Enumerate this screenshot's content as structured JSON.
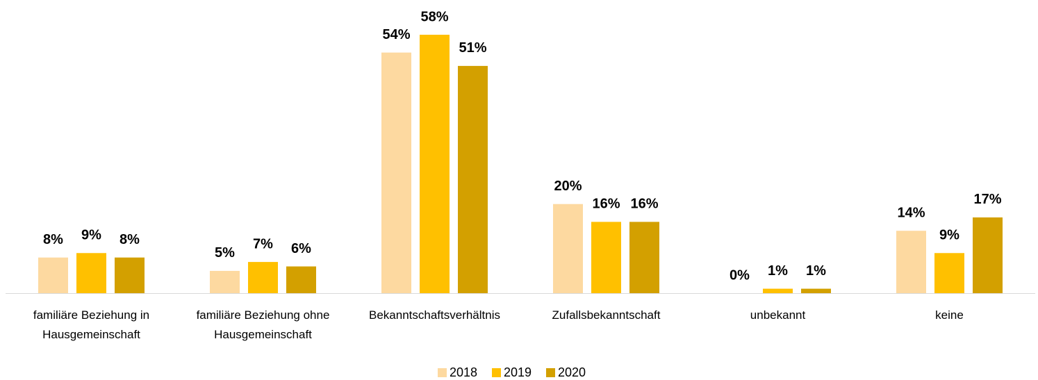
{
  "chart_data": {
    "type": "bar",
    "categories": [
      "familiäre Beziehung in Hausgemeinschaft",
      "familiäre Beziehung ohne Hausgemeinschaft",
      "Bekanntschaftsverhältnis",
      "Zufallsbekanntschaft",
      "unbekannt",
      "keine"
    ],
    "series": [
      {
        "name": "2018",
        "color": "#fdd9a0",
        "values": [
          8,
          5,
          54,
          20,
          0,
          14
        ],
        "value_labels": [
          "8%",
          "5%",
          "54%",
          "20%",
          "0%",
          "14%"
        ]
      },
      {
        "name": "2019",
        "color": "#ffc000",
        "values": [
          9,
          7,
          58,
          16,
          1,
          9
        ],
        "value_labels": [
          "9%",
          "7%",
          "58%",
          "16%",
          "1%",
          "9%"
        ]
      },
      {
        "name": "2020",
        "color": "#d3a000",
        "values": [
          8,
          6,
          51,
          16,
          1,
          17
        ],
        "value_labels": [
          "8%",
          "6%",
          "51%",
          "16%",
          "1%",
          "17%"
        ]
      }
    ],
    "legend": "bottom"
  }
}
